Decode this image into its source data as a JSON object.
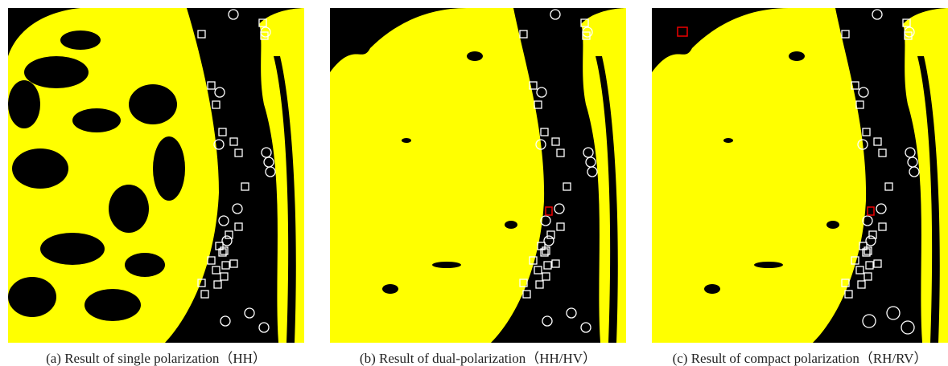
{
  "panels": [
    {
      "caption": "(a)  Result of single polarization（HH）"
    },
    {
      "caption": "(b)  Result of dual-polarization（HH/HV）"
    },
    {
      "caption": "(c)  Result of compact polarization（RH/RV）"
    }
  ]
}
